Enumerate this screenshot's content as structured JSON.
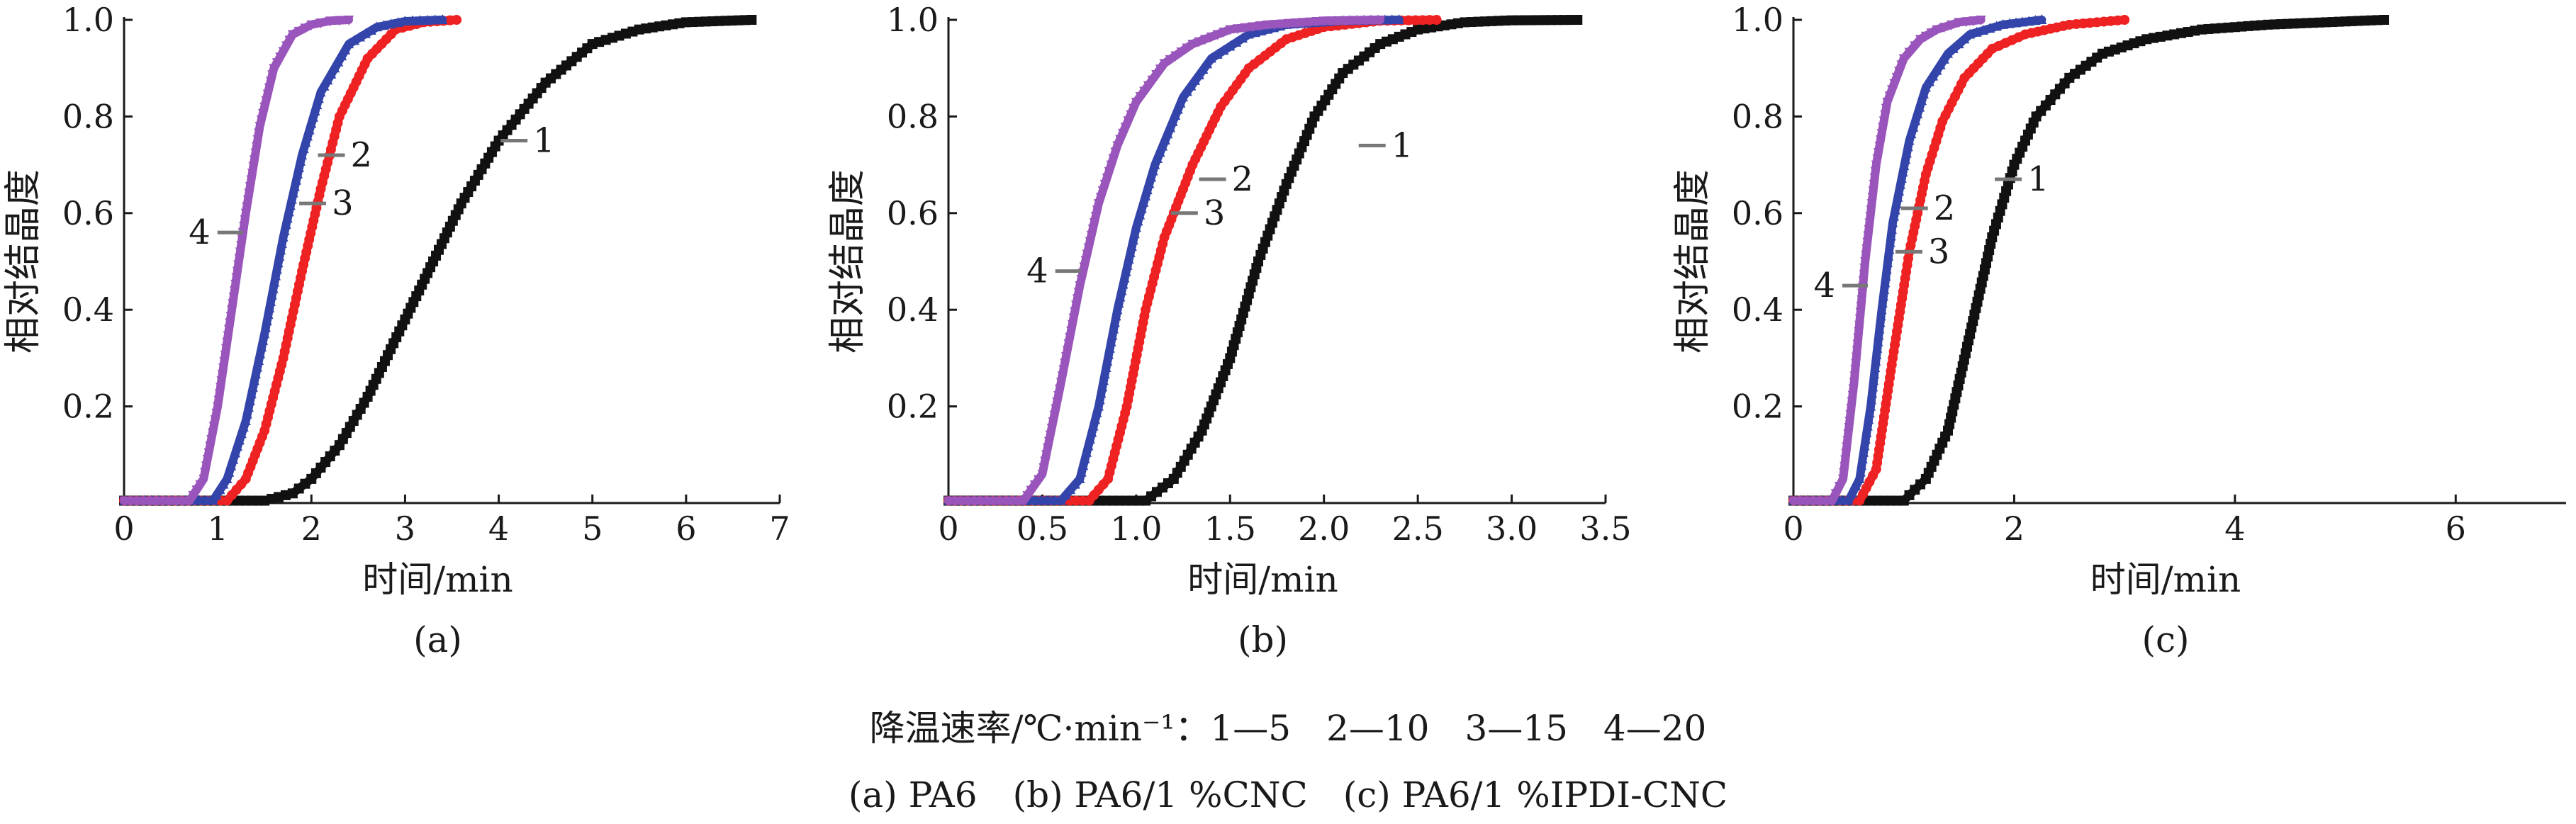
{
  "chart_data": [
    {
      "type": "line",
      "panel_label": "(a)",
      "xlabel": "时间/min",
      "ylabel": "相对结晶度",
      "xlim": [
        0,
        7
      ],
      "ylim": [
        0,
        1.0
      ],
      "x_ticks": [
        "0",
        "1",
        "2",
        "3",
        "4",
        "5",
        "6",
        "7"
      ],
      "y_ticks": [
        "0.2",
        "0.4",
        "0.6",
        "0.8",
        "1.0"
      ],
      "series": [
        {
          "name": "1",
          "color": "#111111",
          "marker": "square",
          "x": [
            0.0,
            1.5,
            1.8,
            2.0,
            2.3,
            2.6,
            3.0,
            3.3,
            3.6,
            4.0,
            4.5,
            5.0,
            5.5,
            6.0,
            6.7
          ],
          "y": [
            0.005,
            0.005,
            0.02,
            0.05,
            0.12,
            0.22,
            0.38,
            0.5,
            0.62,
            0.75,
            0.87,
            0.95,
            0.98,
            0.995,
            1.0
          ]
        },
        {
          "name": "2",
          "color": "#ee2222",
          "marker": "circle",
          "x": [
            0.0,
            1.1,
            1.3,
            1.5,
            1.7,
            1.9,
            2.1,
            2.3,
            2.6,
            2.9,
            3.2,
            3.55
          ],
          "y": [
            0.005,
            0.005,
            0.05,
            0.15,
            0.3,
            0.48,
            0.65,
            0.8,
            0.92,
            0.98,
            0.995,
            1.0
          ]
        },
        {
          "name": "3",
          "color": "#3344aa",
          "marker": "triangle-up",
          "x": [
            0.0,
            0.95,
            1.1,
            1.3,
            1.5,
            1.7,
            1.9,
            2.1,
            2.4,
            2.7,
            3.0,
            3.4
          ],
          "y": [
            0.005,
            0.005,
            0.05,
            0.17,
            0.35,
            0.55,
            0.72,
            0.85,
            0.95,
            0.985,
            0.997,
            1.0
          ]
        },
        {
          "name": "4",
          "color": "#9955bb",
          "marker": "triangle-down",
          "x": [
            0.0,
            0.7,
            0.85,
            1.0,
            1.15,
            1.3,
            1.45,
            1.6,
            1.8,
            2.0,
            2.2,
            2.4
          ],
          "y": [
            0.005,
            0.005,
            0.05,
            0.2,
            0.4,
            0.6,
            0.78,
            0.9,
            0.97,
            0.99,
            0.998,
            1.0
          ]
        }
      ],
      "curve_labels": [
        {
          "text": "1",
          "series": "1",
          "x": 4.05,
          "y": 0.75
        },
        {
          "text": "2",
          "series": "2",
          "x": 2.1,
          "y": 0.72
        },
        {
          "text": "3",
          "series": "3",
          "x": 1.9,
          "y": 0.62
        },
        {
          "text": "4",
          "series": "4",
          "x": 1.3,
          "y": 0.56
        }
      ]
    },
    {
      "type": "line",
      "panel_label": "(b)",
      "xlabel": "时间/min",
      "ylabel": "相对结晶度",
      "xlim": [
        0,
        3.5
      ],
      "ylim": [
        0,
        1.0
      ],
      "x_ticks": [
        "0",
        "0.5",
        "1.0",
        "1.5",
        "2.0",
        "2.5",
        "3.0",
        "3.5"
      ],
      "y_ticks": [
        "0.2",
        "0.4",
        "0.6",
        "0.8",
        "1.0"
      ],
      "series": [
        {
          "name": "1",
          "color": "#111111",
          "marker": "square",
          "x": [
            0.0,
            1.05,
            1.2,
            1.35,
            1.5,
            1.65,
            1.8,
            1.95,
            2.1,
            2.3,
            2.5,
            2.75,
            3.0,
            3.35
          ],
          "y": [
            0.005,
            0.005,
            0.05,
            0.15,
            0.3,
            0.5,
            0.66,
            0.8,
            0.89,
            0.95,
            0.98,
            0.995,
            0.999,
            1.0
          ]
        },
        {
          "name": "2",
          "color": "#ee2222",
          "marker": "circle",
          "x": [
            0.0,
            0.75,
            0.85,
            0.95,
            1.05,
            1.15,
            1.3,
            1.45,
            1.6,
            1.8,
            2.0,
            2.3,
            2.6
          ],
          "y": [
            0.005,
            0.005,
            0.05,
            0.2,
            0.4,
            0.55,
            0.7,
            0.82,
            0.9,
            0.96,
            0.985,
            0.998,
            1.0
          ]
        },
        {
          "name": "3",
          "color": "#3344aa",
          "marker": "triangle-up",
          "x": [
            0.0,
            0.6,
            0.7,
            0.8,
            0.9,
            1.0,
            1.1,
            1.25,
            1.4,
            1.6,
            1.8,
            2.1,
            2.4
          ],
          "y": [
            0.005,
            0.005,
            0.05,
            0.2,
            0.4,
            0.57,
            0.7,
            0.84,
            0.92,
            0.97,
            0.99,
            0.998,
            1.0
          ]
        },
        {
          "name": "4",
          "color": "#9955bb",
          "marker": "triangle-down",
          "x": [
            0.0,
            0.4,
            0.5,
            0.6,
            0.7,
            0.8,
            0.9,
            1.0,
            1.15,
            1.3,
            1.5,
            1.7,
            2.0,
            2.3
          ],
          "y": [
            0.005,
            0.005,
            0.06,
            0.25,
            0.45,
            0.62,
            0.74,
            0.83,
            0.91,
            0.95,
            0.98,
            0.99,
            0.998,
            1.0
          ]
        }
      ],
      "curve_labels": [
        {
          "text": "1",
          "series": "1",
          "x": 2.2,
          "y": 0.74
        },
        {
          "text": "2",
          "series": "2",
          "x": 1.35,
          "y": 0.67
        },
        {
          "text": "3",
          "series": "3",
          "x": 1.2,
          "y": 0.6
        },
        {
          "text": "4",
          "series": "4",
          "x": 0.72,
          "y": 0.48
        }
      ]
    },
    {
      "type": "line",
      "panel_label": "(c)",
      "xlabel": "时间/min",
      "ylabel": "相对结晶度",
      "xlim": [
        0,
        7
      ],
      "ylim": [
        0,
        1.0
      ],
      "x_ticks": [
        "0",
        "2",
        "4",
        "6"
      ],
      "y_ticks": [
        "0.2",
        "0.4",
        "0.6",
        "0.8",
        "1.0"
      ],
      "series": [
        {
          "name": "1",
          "color": "#111111",
          "marker": "square",
          "x": [
            0.0,
            1.0,
            1.2,
            1.4,
            1.6,
            1.8,
            2.0,
            2.2,
            2.5,
            2.8,
            3.2,
            3.7,
            4.3,
            5.35
          ],
          "y": [
            0.005,
            0.005,
            0.05,
            0.15,
            0.35,
            0.55,
            0.7,
            0.8,
            0.88,
            0.93,
            0.96,
            0.98,
            0.99,
            1.0
          ]
        },
        {
          "name": "2",
          "color": "#ee2222",
          "marker": "circle",
          "x": [
            0.0,
            0.6,
            0.75,
            0.9,
            1.05,
            1.2,
            1.35,
            1.55,
            1.8,
            2.1,
            2.5,
            3.0
          ],
          "y": [
            0.005,
            0.005,
            0.07,
            0.3,
            0.52,
            0.68,
            0.79,
            0.88,
            0.94,
            0.97,
            0.99,
            1.0
          ]
        },
        {
          "name": "3",
          "color": "#3344aa",
          "marker": "triangle-up",
          "x": [
            0.0,
            0.5,
            0.6,
            0.7,
            0.8,
            0.9,
            1.05,
            1.2,
            1.4,
            1.6,
            1.9,
            2.25
          ],
          "y": [
            0.005,
            0.005,
            0.05,
            0.2,
            0.4,
            0.58,
            0.75,
            0.86,
            0.93,
            0.97,
            0.99,
            1.0
          ]
        },
        {
          "name": "4",
          "color": "#9955bb",
          "marker": "triangle-down",
          "x": [
            0.0,
            0.35,
            0.45,
            0.55,
            0.65,
            0.75,
            0.85,
            1.0,
            1.15,
            1.3,
            1.5,
            1.7
          ],
          "y": [
            0.005,
            0.005,
            0.05,
            0.25,
            0.5,
            0.7,
            0.83,
            0.92,
            0.96,
            0.98,
            0.995,
            1.0
          ]
        }
      ],
      "curve_labels": [
        {
          "text": "1",
          "series": "1",
          "x": 1.85,
          "y": 0.67
        },
        {
          "text": "2",
          "series": "2",
          "x": 1.0,
          "y": 0.61
        },
        {
          "text": "3",
          "series": "3",
          "x": 0.95,
          "y": 0.52
        },
        {
          "text": "4",
          "series": "4",
          "x": 0.7,
          "y": 0.45
        }
      ]
    }
  ],
  "legend_caption": "降温速率/℃·min⁻¹：1—5　2—10　3—15　4—20",
  "figure_caption": "(a) PA6　(b) PA6/1 %CNC　(c) PA6/1 %IPDI-CNC"
}
